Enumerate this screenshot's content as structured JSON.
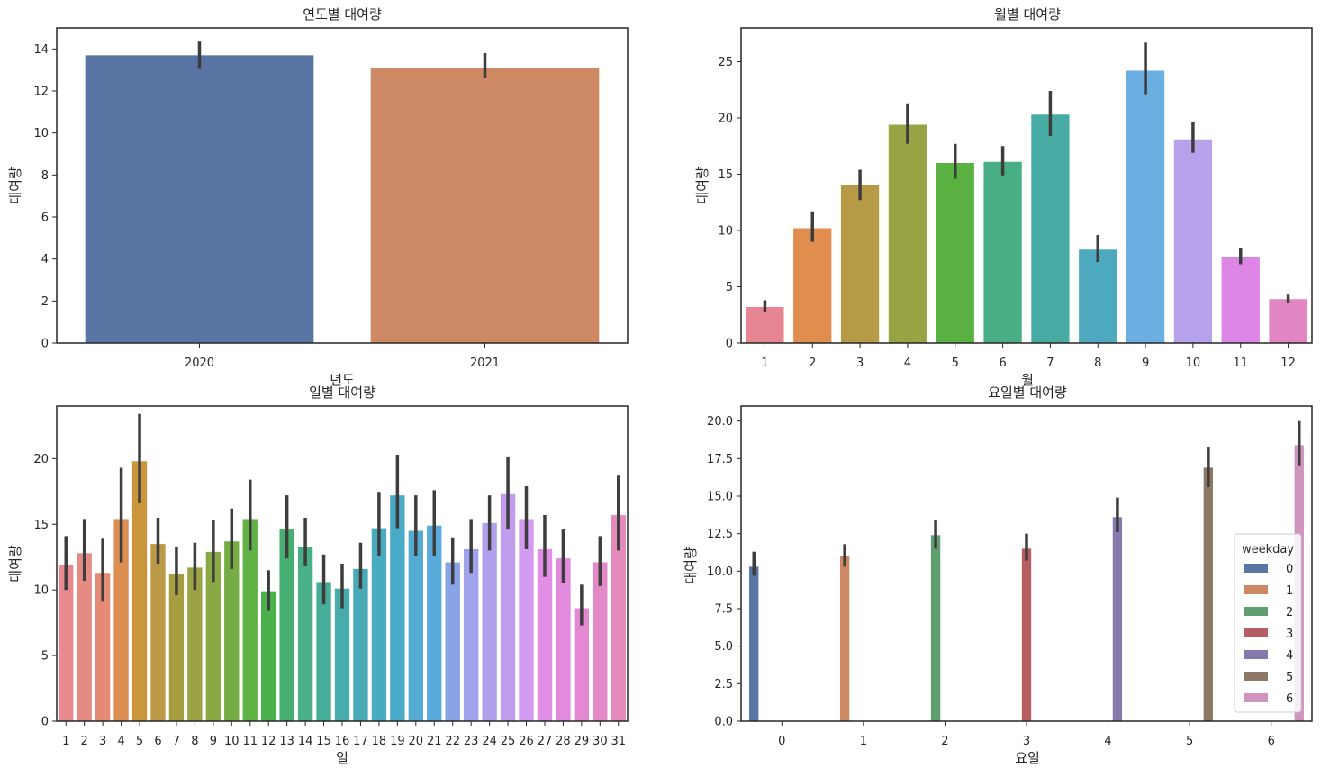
{
  "chart_data": [
    {
      "type": "bar",
      "title": "연도별 대여량",
      "xlabel": "년도",
      "ylabel": "대여량",
      "categories": [
        "2020",
        "2021"
      ],
      "values": [
        13.7,
        13.1
      ],
      "ci": [
        [
          13.05,
          14.35
        ],
        [
          12.6,
          13.8
        ]
      ],
      "colors": [
        "#5875a4",
        "#cc8963"
      ],
      "ylim": [
        0,
        15
      ],
      "yticks": [
        "0",
        "2",
        "4",
        "6",
        "8",
        "10",
        "12",
        "14"
      ]
    },
    {
      "type": "bar",
      "title": "월별 대여량",
      "xlabel": "월",
      "ylabel": "대여량",
      "categories": [
        "1",
        "2",
        "3",
        "4",
        "5",
        "6",
        "7",
        "8",
        "9",
        "10",
        "11",
        "12"
      ],
      "values": [
        3.2,
        10.2,
        14.0,
        19.4,
        16.0,
        16.1,
        20.3,
        8.3,
        24.2,
        18.1,
        7.6,
        3.9
      ],
      "ci": [
        [
          2.8,
          3.8
        ],
        [
          9.0,
          11.7
        ],
        [
          12.7,
          15.4
        ],
        [
          17.7,
          21.3
        ],
        [
          14.6,
          17.7
        ],
        [
          14.9,
          17.5
        ],
        [
          18.4,
          22.4
        ],
        [
          7.2,
          9.6
        ],
        [
          22.1,
          26.7
        ],
        [
          16.9,
          19.6
        ],
        [
          7.0,
          8.4
        ],
        [
          3.6,
          4.3
        ]
      ],
      "colors": [
        "#e88592",
        "#e08d4e",
        "#b69a46",
        "#98a443",
        "#5ab040",
        "#48ae83",
        "#48aca5",
        "#4daabe",
        "#6aaee2",
        "#b6a2eb",
        "#de86e5",
        "#e286c3"
      ],
      "ylim": [
        0,
        28
      ],
      "yticks": [
        "0",
        "5",
        "10",
        "15",
        "20",
        "25"
      ]
    },
    {
      "type": "bar",
      "title": "일별 대여량",
      "xlabel": "일",
      "ylabel": "대여량",
      "categories": [
        "1",
        "2",
        "3",
        "4",
        "5",
        "6",
        "7",
        "8",
        "9",
        "10",
        "11",
        "12",
        "13",
        "14",
        "15",
        "16",
        "17",
        "18",
        "19",
        "20",
        "21",
        "22",
        "23",
        "24",
        "25",
        "26",
        "27",
        "28",
        "29",
        "30",
        "31"
      ],
      "values": [
        11.9,
        12.8,
        11.3,
        15.4,
        19.8,
        13.5,
        11.2,
        11.7,
        12.9,
        13.7,
        15.4,
        9.9,
        14.6,
        13.3,
        10.6,
        10.1,
        11.6,
        14.7,
        17.2,
        14.5,
        14.9,
        12.1,
        13.1,
        15.1,
        17.3,
        15.4,
        13.1,
        12.4,
        8.6,
        12.1,
        15.7
      ],
      "ci": [
        [
          10.0,
          14.1
        ],
        [
          10.7,
          15.4
        ],
        [
          9.1,
          13.9
        ],
        [
          12.1,
          19.3
        ],
        [
          16.6,
          23.4
        ],
        [
          12.0,
          15.5
        ],
        [
          9.6,
          13.3
        ],
        [
          10.0,
          13.6
        ],
        [
          10.6,
          15.3
        ],
        [
          11.6,
          16.2
        ],
        [
          13.0,
          18.4
        ],
        [
          8.4,
          11.5
        ],
        [
          12.4,
          17.2
        ],
        [
          11.8,
          15.5
        ],
        [
          8.9,
          12.7
        ],
        [
          8.6,
          12.0
        ],
        [
          10.1,
          13.6
        ],
        [
          12.6,
          17.4
        ],
        [
          14.7,
          20.3
        ],
        [
          12.6,
          17.2
        ],
        [
          12.6,
          17.6
        ],
        [
          10.4,
          14.0
        ],
        [
          11.3,
          15.4
        ],
        [
          13.0,
          17.2
        ],
        [
          14.6,
          20.1
        ],
        [
          13.1,
          17.9
        ],
        [
          11.0,
          15.7
        ],
        [
          10.5,
          14.6
        ],
        [
          7.3,
          10.4
        ],
        [
          10.3,
          14.1
        ],
        [
          13.0,
          18.7
        ]
      ],
      "colors": [
        "#e8888f",
        "#e58b84",
        "#e58a76",
        "#dc8e52",
        "#c9963c",
        "#bc9946",
        "#a79e42",
        "#9ba243",
        "#8aa844",
        "#76ac44",
        "#60b244",
        "#4bb24b",
        "#48af73",
        "#48af87",
        "#47ad98",
        "#47acab",
        "#49abb7",
        "#48aabf",
        "#4ba9c8",
        "#53aad2",
        "#5aabdb",
        "#88a4e6",
        "#a0a2eb",
        "#b0a0ec",
        "#c29ded",
        "#d29af0",
        "#e08ee8",
        "#e28adc",
        "#e388d1",
        "#e488c8",
        "#e48abc"
      ],
      "ylim": [
        0,
        24
      ],
      "yticks": [
        "0",
        "5",
        "10",
        "15",
        "20"
      ]
    },
    {
      "type": "bar",
      "title": "요일별 대여량",
      "xlabel": "요일",
      "ylabel": "대여량",
      "categories": [
        "0",
        "1",
        "2",
        "3",
        "4",
        "5",
        "6"
      ],
      "hue": "weekday",
      "series": [
        {
          "name": "0",
          "category": "0",
          "value": 10.3,
          "ci": [
            9.7,
            11.3
          ],
          "color": "#5875a4"
        },
        {
          "name": "1",
          "category": "1",
          "value": 11.0,
          "ci": [
            10.3,
            11.8
          ],
          "color": "#cc8963"
        },
        {
          "name": "2",
          "category": "2",
          "value": 12.4,
          "ci": [
            11.5,
            13.4
          ],
          "color": "#5f9e6e"
        },
        {
          "name": "3",
          "category": "3",
          "value": 11.5,
          "ci": [
            10.7,
            12.5
          ],
          "color": "#b55d60"
        },
        {
          "name": "4",
          "category": "4",
          "value": 13.6,
          "ci": [
            12.6,
            14.9
          ],
          "color": "#857aab"
        },
        {
          "name": "5",
          "category": "5",
          "value": 16.9,
          "ci": [
            15.6,
            18.3
          ],
          "color": "#8d7866"
        },
        {
          "name": "6",
          "category": "6",
          "value": 18.4,
          "ci": [
            17.0,
            20.0
          ],
          "color": "#d095bf"
        }
      ],
      "legend_title": "weekday",
      "legend_position": "lower-right",
      "ylim": [
        0,
        21
      ],
      "yticks": [
        "0.0",
        "2.5",
        "5.0",
        "7.5",
        "10.0",
        "12.5",
        "15.0",
        "17.5",
        "20.0"
      ]
    }
  ]
}
